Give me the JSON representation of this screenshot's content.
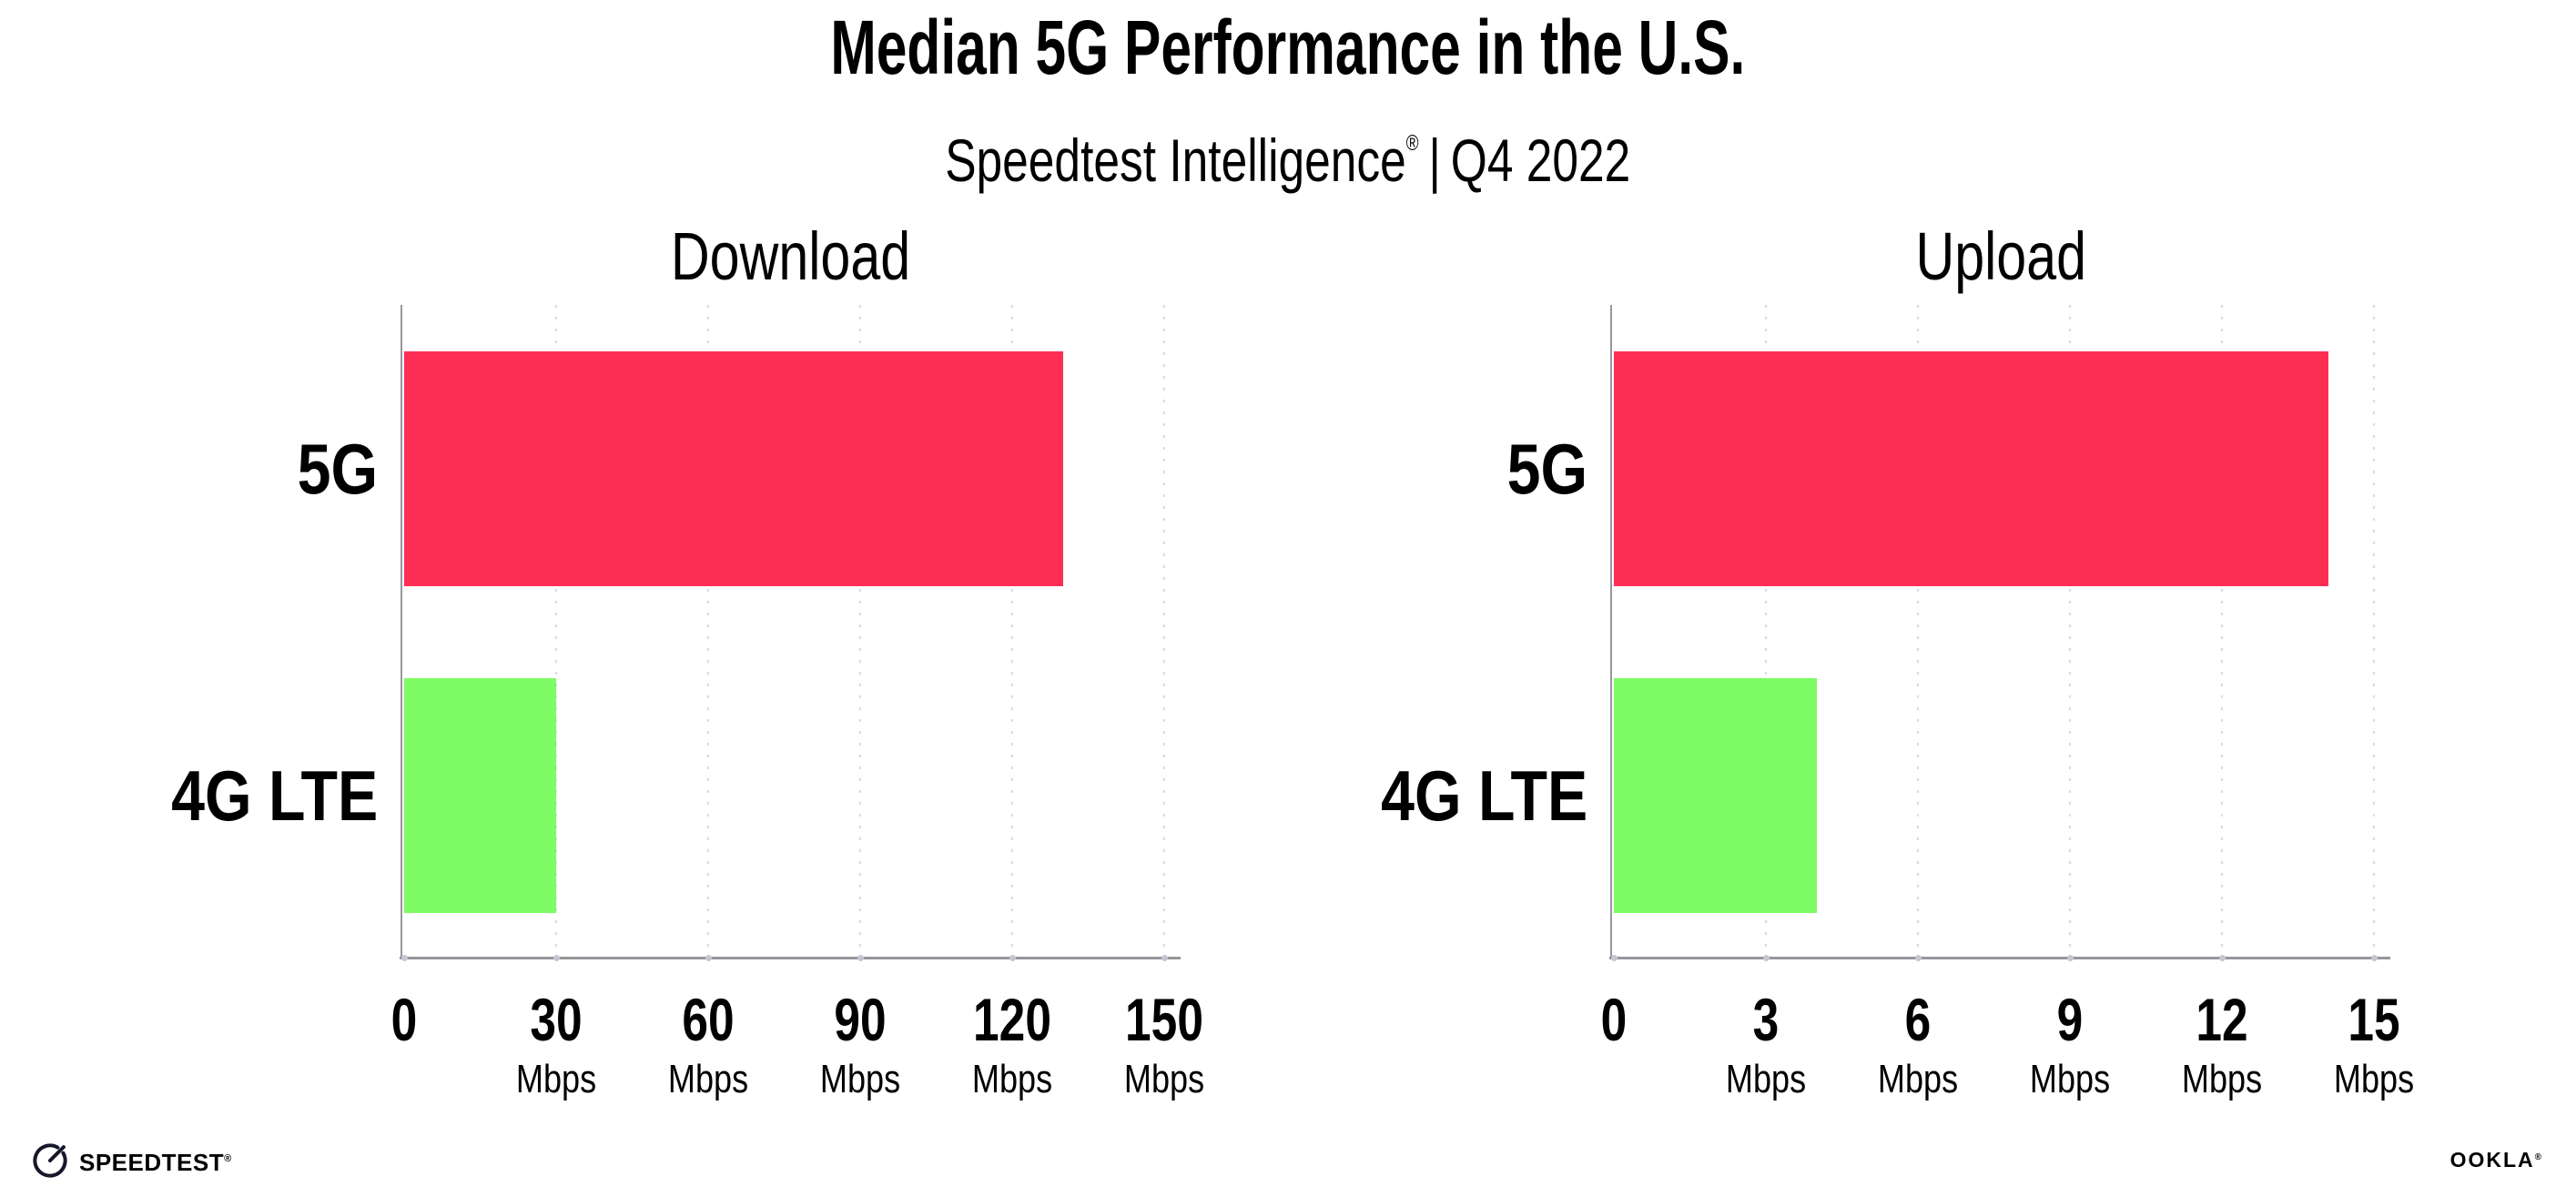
{
  "header": {
    "title": "Median 5G Performance in the U.S.",
    "subtitle_brand": "Speedtest Intelligence",
    "subtitle_reg_mark": "®",
    "subtitle_separator": "|",
    "subtitle_period": "Q4 2022"
  },
  "footer": {
    "speedtest_label": "SPEEDTEST",
    "speedtest_reg_mark": "®",
    "ookla_label": "OOKLA",
    "ookla_reg_mark": "®"
  },
  "colors": {
    "bar_5g": "#fd2e56",
    "bar_4g_lte": "#7efb65",
    "axis": "#96969c",
    "gridline": "#d9d9e4",
    "text": "#000000",
    "background": "#ffffff"
  },
  "icons": {
    "speedtest_gauge": "speedtest-gauge-icon"
  },
  "chart_data": [
    {
      "type": "bar",
      "orientation": "horizontal",
      "title": "Download",
      "categories": [
        "5G",
        "4G LTE"
      ],
      "values": [
        130,
        30
      ],
      "unit": "Mbps",
      "xlabel": "",
      "ylabel": "",
      "xlim": [
        0,
        150
      ],
      "xticks": [
        0,
        30,
        60,
        90,
        120,
        150
      ],
      "series_colors": [
        "#fd2e56",
        "#7efb65"
      ],
      "grid": "vertical-dotted",
      "legend": "none"
    },
    {
      "type": "bar",
      "orientation": "horizontal",
      "title": "Upload",
      "categories": [
        "5G",
        "4G LTE"
      ],
      "values": [
        14.1,
        4
      ],
      "unit": "Mbps",
      "xlabel": "",
      "ylabel": "",
      "xlim": [
        0,
        15
      ],
      "xticks": [
        0,
        3,
        6,
        9,
        12,
        15
      ],
      "series_colors": [
        "#fd2e56",
        "#7efb65"
      ],
      "grid": "vertical-dotted",
      "legend": "none"
    }
  ]
}
